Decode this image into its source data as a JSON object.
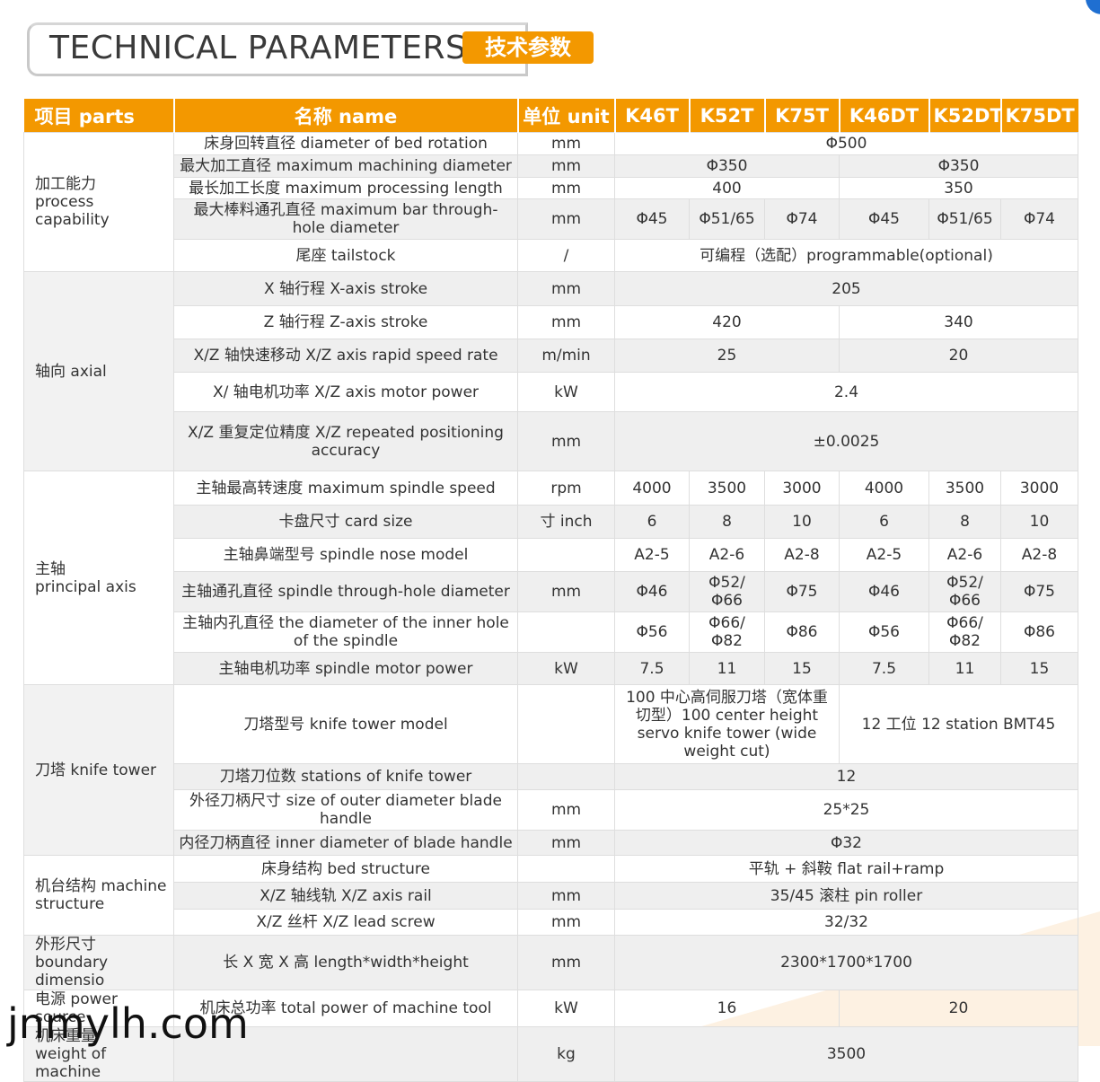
{
  "header": {
    "title": "TECHNICAL PARAMETERS",
    "subtitle": "技术参数"
  },
  "table": {
    "columns": [
      "项目 parts",
      "名称 name",
      "单位 unit",
      "K46T",
      "K52T",
      "K75T",
      "K46DT",
      "K52DT",
      "K75DT"
    ],
    "groups": [
      {
        "name": "加工能力\nprocess capability",
        "rows": [
          {
            "item": "床身回转直径 diameter of bed rotation",
            "unit": "mm",
            "values": [
              "Φ500"
            ]
          },
          {
            "item": "最大加工直径 maximum machining diameter",
            "unit": "mm",
            "values": [
              "Φ350",
              "Φ350"
            ]
          },
          {
            "item": "最长加工长度 maximum processing length",
            "unit": "mm",
            "values": [
              "400",
              "350"
            ]
          },
          {
            "item": "最大棒料通孔直径 maximum bar through-hole diameter",
            "unit": "mm",
            "values": [
              "Φ45",
              "Φ51/65",
              "Φ74",
              "Φ45",
              "Φ51/65",
              "Φ74"
            ]
          },
          {
            "item": "尾座 tailstock",
            "unit": "/",
            "values": [
              "可编程（选配）programmable(optional)"
            ]
          }
        ]
      },
      {
        "name": "轴向 axial",
        "rows": [
          {
            "item": "X 轴行程 X-axis stroke",
            "unit": "mm",
            "values": [
              "205"
            ]
          },
          {
            "item": "Z 轴行程 Z-axis stroke",
            "unit": "mm",
            "values": [
              "420",
              "340"
            ]
          },
          {
            "item": "X/Z 轴快速移动 X/Z axis rapid speed rate",
            "unit": "m/min",
            "values": [
              "25",
              "20"
            ]
          },
          {
            "item": "X/ 轴电机功率 X/Z axis motor power",
            "unit": "kW",
            "values": [
              "2.4"
            ]
          },
          {
            "item": "X/Z 重复定位精度 X/Z repeated positioning accuracy",
            "unit": "mm",
            "values": [
              "±0.0025"
            ]
          }
        ]
      },
      {
        "name": "主轴\nprincipal axis",
        "rows": [
          {
            "item": "主轴最高转速度 maximum spindle speed",
            "unit": "rpm",
            "values": [
              "4000",
              "3500",
              "3000",
              "4000",
              "3500",
              "3000"
            ]
          },
          {
            "item": "卡盘尺寸 card size",
            "unit": "寸 inch",
            "values": [
              "6",
              "8",
              "10",
              "6",
              "8",
              "10"
            ]
          },
          {
            "item": "主轴鼻端型号 spindle nose model",
            "values": [
              "A2-5",
              "A2-6",
              "A2-8",
              "A2-5",
              "A2-6",
              "A2-8"
            ]
          },
          {
            "item": "主轴通孔直径 spindle through-hole diameter",
            "unit": "mm",
            "values": [
              "Φ46",
              "Φ52/Φ66",
              "Φ75",
              "Φ46",
              "Φ52/Φ66",
              "Φ75"
            ]
          },
          {
            "item": "主轴内孔直径 the diameter of the inner hole of the spindle",
            "values": [
              "Φ56",
              "Φ66/Φ82",
              "Φ86",
              "Φ56",
              "Φ66/Φ82",
              "Φ86"
            ]
          },
          {
            "item": "主轴电机功率 spindle motor power",
            "unit": "kW",
            "values": [
              "7.5",
              "11",
              "15",
              "7.5",
              "11",
              "15"
            ]
          }
        ]
      },
      {
        "name": "刀塔 knife tower",
        "rows": [
          {
            "item": "刀塔型号 knife tower model",
            "values": [
              "100 中心高伺服刀塔（宽体重切型）100 center height servo knife tower (wide weight cut)",
              "12 工位 12 station BMT45"
            ]
          },
          {
            "item": "刀塔刀位数 stations of knife tower",
            "values": [
              "12"
            ]
          },
          {
            "item": "外径刀柄尺寸 size of outer diameter blade handle",
            "unit": "mm",
            "values": [
              "25*25"
            ]
          },
          {
            "item": "内径刀柄直径 inner diameter of blade handle",
            "unit": "mm",
            "values": [
              "Φ32"
            ]
          }
        ]
      },
      {
        "name": "机台结构 machine structure",
        "rows": [
          {
            "item": "床身结构 bed structure",
            "values": [
              "平轨 + 斜鞍 flat rail+ramp"
            ]
          },
          {
            "item": "X/Z 轴线轨 X/Z axis rail",
            "unit": "mm",
            "values": [
              "35/45 滚柱 pin roller"
            ]
          },
          {
            "item": "X/Z 丝杆 X/Z lead screw",
            "unit": "mm",
            "values": [
              "32/32"
            ]
          }
        ]
      },
      {
        "name": "外形尺寸 boundary dimensio",
        "rows": [
          {
            "item": "长 X 宽 X 高 length*width*height",
            "unit": "mm",
            "values": [
              "2300*1700*1700"
            ]
          }
        ]
      },
      {
        "name": "电源 power source",
        "rows": [
          {
            "item": "机床总功率 total power of machine tool",
            "unit": "kW",
            "values": [
              "16",
              "20"
            ]
          }
        ]
      },
      {
        "name": "机床重量\nweight of machine",
        "rows": [
          {
            "unit": "kg",
            "values": [
              "3500"
            ]
          }
        ]
      }
    ]
  },
  "watermark": "jnmylh.com"
}
